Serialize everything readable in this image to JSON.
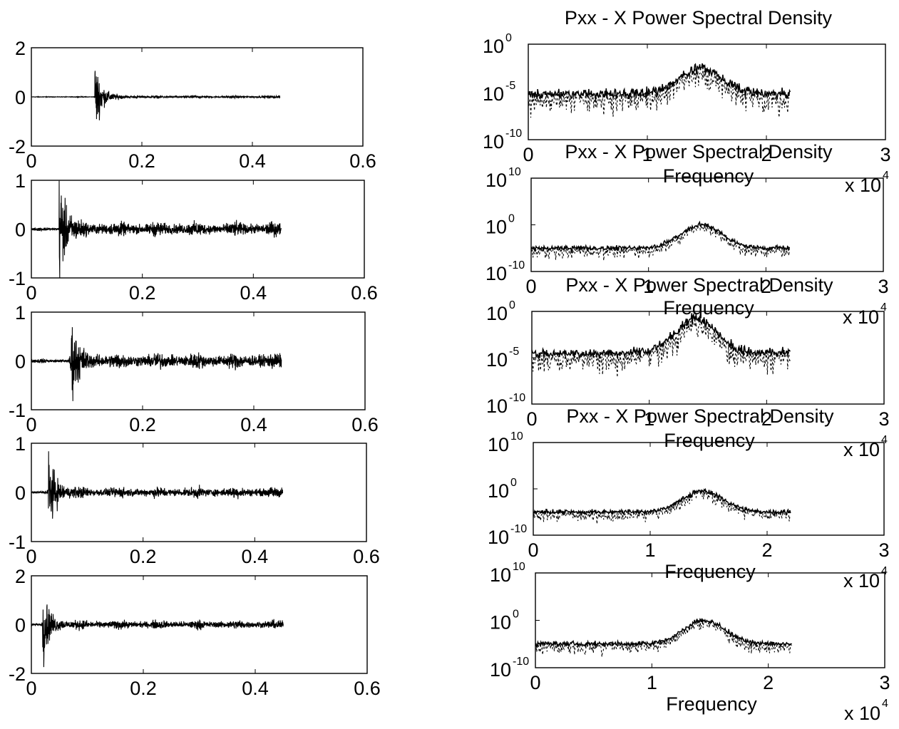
{
  "chart_data": [
    {
      "type": "line",
      "x": [
        0,
        0.45
      ],
      "xlim": [
        0,
        0.6
      ],
      "ylim": [
        -2,
        2
      ],
      "xticks": [
        "0",
        "0.2",
        "0.4",
        "0.6"
      ],
      "yticks": [
        "-2",
        "0",
        "2"
      ],
      "series": [
        {
          "burst_at": 0.115,
          "peak": 1.2,
          "noise": 0.03
        }
      ]
    },
    {
      "type": "line",
      "x": [
        0,
        0.45
      ],
      "xlim": [
        0,
        0.6
      ],
      "ylim": [
        -1,
        1
      ],
      "xticks": [
        "0",
        "0.2",
        "0.4",
        "0.6"
      ],
      "yticks": [
        "-1",
        "0",
        "1"
      ],
      "series": [
        {
          "burst_at": 0.05,
          "peak": 0.9,
          "noise": 0.08
        }
      ]
    },
    {
      "type": "line",
      "x": [
        0,
        0.45
      ],
      "xlim": [
        0,
        0.6
      ],
      "ylim": [
        -1,
        1
      ],
      "xticks": [
        "0",
        "0.2",
        "0.4",
        "0.6"
      ],
      "yticks": [
        "-1",
        "0",
        "1"
      ],
      "series": [
        {
          "burst_at": 0.07,
          "peak": 0.7,
          "noise": 0.09
        }
      ]
    },
    {
      "type": "line",
      "x": [
        0,
        0.45
      ],
      "xlim": [
        0,
        0.6
      ],
      "ylim": [
        -1,
        1
      ],
      "xticks": [
        "0",
        "0.2",
        "0.4",
        "0.6"
      ],
      "yticks": [
        "-1",
        "0",
        "1"
      ],
      "series": [
        {
          "burst_at": 0.03,
          "peak": 0.7,
          "noise": 0.06
        }
      ]
    },
    {
      "type": "line",
      "x": [
        0,
        0.45
      ],
      "xlim": [
        0,
        0.6
      ],
      "ylim": [
        -2,
        2
      ],
      "xticks": [
        "0",
        "0.2",
        "0.4",
        "0.6"
      ],
      "yticks": [
        "-2",
        "0",
        "2"
      ],
      "series": [
        {
          "burst_at": 0.02,
          "peak": 1.2,
          "noise": 0.1
        }
      ]
    },
    {
      "type": "line",
      "title": "Pxx - X Power Spectral Density",
      "xlabel": "Frequency",
      "x_multiplier": "x 10",
      "x_multiplier_exp": "4",
      "xlim": [
        0,
        30000
      ],
      "x": [
        0,
        22000
      ],
      "yscale": "log",
      "ylim_exp": [
        -10,
        0
      ],
      "xticks": [
        "0",
        "1",
        "2",
        "3"
      ],
      "yticks": [
        {
          "base": "10",
          "exp": "0"
        },
        {
          "base": "10",
          "exp": "-5"
        },
        {
          "base": "10",
          "exp": "-10"
        }
      ],
      "series": [
        {
          "baseline_exp": -5.2,
          "peak_at": 14500,
          "peak_exp": -2.5
        }
      ]
    },
    {
      "type": "line",
      "title": "Pxx - X Power Spectral Density",
      "xlabel": "Frequency",
      "x_multiplier": "x 10",
      "x_multiplier_exp": "4",
      "xlim": [
        0,
        30000
      ],
      "x": [
        0,
        22000
      ],
      "yscale": "log",
      "ylim_exp": [
        -10,
        10
      ],
      "xticks": [
        "0",
        "1",
        "2",
        "3"
      ],
      "yticks": [
        {
          "base": "10",
          "exp": "10"
        },
        {
          "base": "10",
          "exp": "0"
        },
        {
          "base": "10",
          "exp": "-10"
        }
      ],
      "series": [
        {
          "baseline_exp": -5,
          "peak_at": 14500,
          "peak_exp": 0
        }
      ]
    },
    {
      "type": "line",
      "title": "Pxx - X Power Spectral Density",
      "xlabel": "Frequency",
      "x_multiplier": "x 10",
      "x_multiplier_exp": "4",
      "xlim": [
        0,
        30000
      ],
      "x": [
        0,
        22000
      ],
      "yscale": "log",
      "ylim_exp": [
        -10,
        0
      ],
      "xticks": [
        "0",
        "1",
        "2",
        "3"
      ],
      "yticks": [
        {
          "base": "10",
          "exp": "0"
        },
        {
          "base": "10",
          "exp": "-5"
        },
        {
          "base": "10",
          "exp": "-10"
        }
      ],
      "series": [
        {
          "baseline_exp": -4.5,
          "peak_at": 14000,
          "peak_exp": -0.8
        }
      ]
    },
    {
      "type": "line",
      "title": "Pxx - X Power Spectral Density",
      "xlabel": "Frequency",
      "x_multiplier": "x 10",
      "x_multiplier_exp": "4",
      "xlim": [
        0,
        30000
      ],
      "x": [
        0,
        22000
      ],
      "yscale": "log",
      "ylim_exp": [
        -10,
        10
      ],
      "xticks": [
        "0",
        "1",
        "2",
        "3"
      ],
      "yticks": [
        {
          "base": "10",
          "exp": "10"
        },
        {
          "base": "10",
          "exp": "0"
        },
        {
          "base": "10",
          "exp": "-10"
        }
      ],
      "series": [
        {
          "baseline_exp": -5,
          "peak_at": 14500,
          "peak_exp": -0.5
        }
      ]
    },
    {
      "type": "line",
      "xlabel": "Frequency",
      "x_multiplier": "x 10",
      "x_multiplier_exp": "4",
      "xlim": [
        0,
        30000
      ],
      "x": [
        0,
        22000
      ],
      "yscale": "log",
      "ylim_exp": [
        -10,
        10
      ],
      "xticks": [
        "0",
        "1",
        "2",
        "3"
      ],
      "yticks": [
        {
          "base": "10",
          "exp": "10"
        },
        {
          "base": "10",
          "exp": "0"
        },
        {
          "base": "10",
          "exp": "-10"
        }
      ],
      "series": [
        {
          "baseline_exp": -5,
          "peak_at": 14500,
          "peak_exp": 0
        }
      ]
    }
  ]
}
